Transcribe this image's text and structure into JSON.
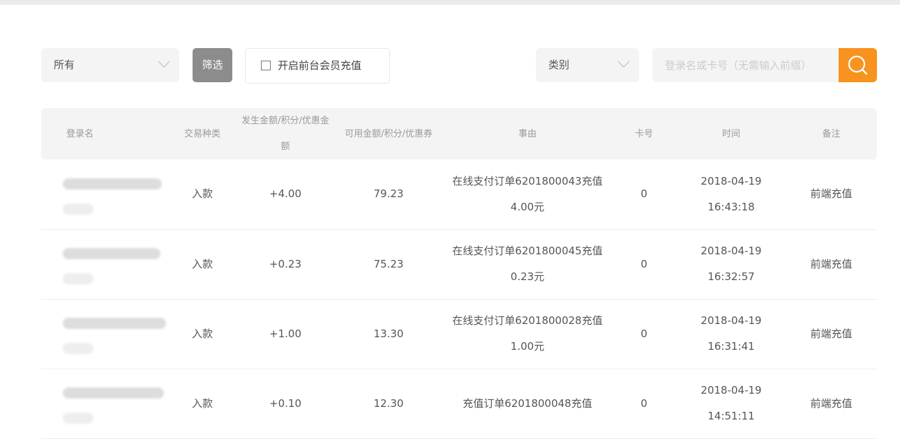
{
  "filters": {
    "scope_select": "所有",
    "filter_button": "筛选",
    "frontend_recharge_checkbox": "开启前台会员充值",
    "category_select": "类别",
    "search_placeholder": "登录名或卡号（无需输入前缀）",
    "accent_color": "#f7931e",
    "search_icon": "search-icon"
  },
  "table": {
    "headers": [
      "登录名",
      "交易种类",
      "发生金额/积分/优惠金额",
      "可用金额/积分/优惠券",
      "事由",
      "卡号",
      "时间",
      "备注"
    ],
    "rows": [
      {
        "type": "入款",
        "amount": "+4.00",
        "available": "79.23",
        "reason": "在线支付订单6201800043充值4.00元",
        "card": "0",
        "time": "2018-04-19 16:43:18",
        "note": "前端充值"
      },
      {
        "type": "入款",
        "amount": "+0.23",
        "available": "75.23",
        "reason": "在线支付订单6201800045充值0.23元",
        "card": "0",
        "time": "2018-04-19 16:32:57",
        "note": "前端充值"
      },
      {
        "type": "入款",
        "amount": "+1.00",
        "available": "13.30",
        "reason": "在线支付订单6201800028充值1.00元",
        "card": "0",
        "time": "2018-04-19 16:31:41",
        "note": "前端充值"
      },
      {
        "type": "入款",
        "amount": "+0.10",
        "available": "12.30",
        "reason": "充值订单6201800048充值",
        "card": "0",
        "time": "2018-04-19 14:51:11",
        "note": "前端充值"
      }
    ]
  }
}
